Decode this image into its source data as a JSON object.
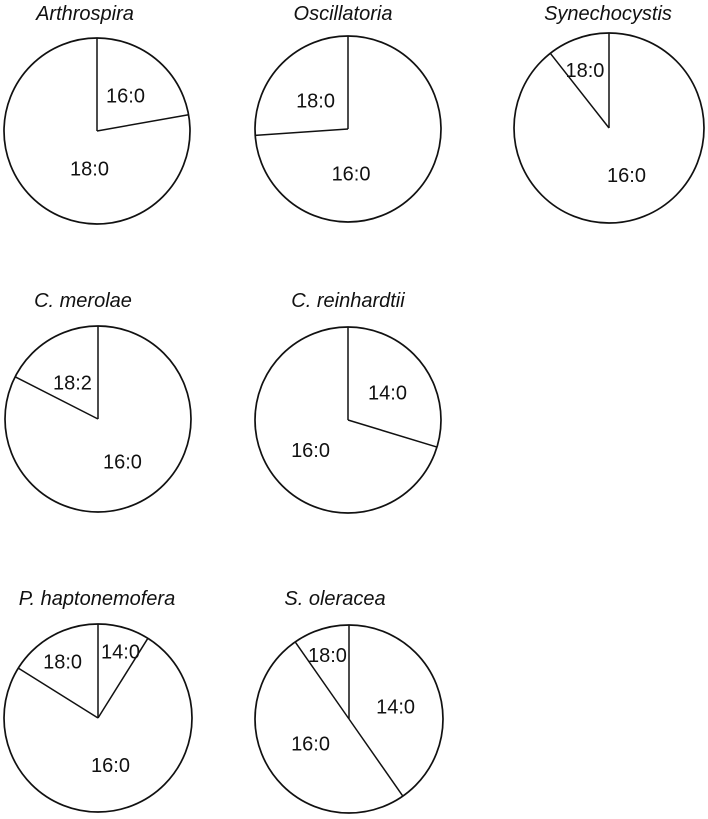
{
  "colors": {
    "background": "#ffffff",
    "stroke": "#111111",
    "text": "#111111"
  },
  "chart_data": {
    "type": "pie",
    "description_visible_text_only": "Seven unfilled pie charts of fatty acid composition, labels drawn inside slices",
    "slice_fill": "white",
    "slices_start": "12 o'clock, clockwise",
    "legend": "none",
    "pies": [
      {
        "title": "Arthrospira",
        "slices": [
          {
            "label": "16:0",
            "pct": 22.2
          },
          {
            "label": "18:0",
            "pct": 77.8
          }
        ]
      },
      {
        "title": "Oscillatoria",
        "slices": [
          {
            "label": "16:0",
            "pct": 73.9
          },
          {
            "label": "18:0",
            "pct": 26.1
          }
        ]
      },
      {
        "title": "Synechocystis",
        "slices": [
          {
            "label": "16:0",
            "pct": 89.4
          },
          {
            "label": "18:0",
            "pct": 10.6
          }
        ]
      },
      {
        "title": "C. merolae",
        "slices": [
          {
            "label": "16:0",
            "pct": 82.5
          },
          {
            "label": "18:2",
            "pct": 17.5
          }
        ]
      },
      {
        "title": "C. reinhardtii",
        "slices": [
          {
            "label": "14:0",
            "pct": 29.7
          },
          {
            "label": "16:0",
            "pct": 70.3
          }
        ]
      },
      {
        "title": "P. haptonemofera",
        "slices": [
          {
            "label": "14:0",
            "pct": 8.9
          },
          {
            "label": "16:0",
            "pct": 75.0
          },
          {
            "label": "18:0",
            "pct": 16.1
          }
        ]
      },
      {
        "title": "S. oleracea",
        "slices": [
          {
            "label": "14:0",
            "pct": 40.3
          },
          {
            "label": "16:0",
            "pct": 50.0
          },
          {
            "label": "18:0",
            "pct": 9.7
          }
        ]
      }
    ]
  }
}
